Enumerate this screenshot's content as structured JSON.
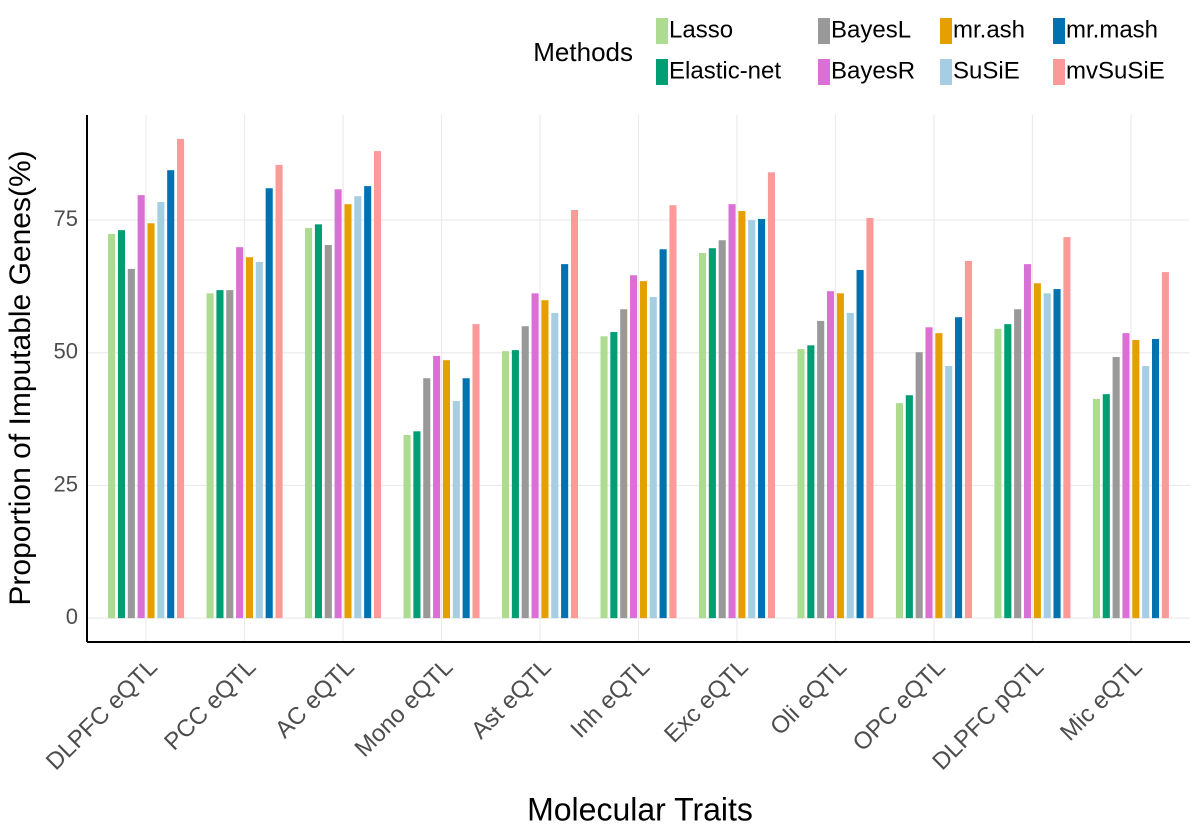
{
  "chart_data": {
    "type": "bar",
    "x_label": "Molecular Traits",
    "y_label": "Proportion of Imputable Genes(%)",
    "legend_title": "Methods",
    "legend": "top",
    "grid": true,
    "categories": [
      "DLPFC eQTL",
      "PCC eQTL",
      "AC eQTL",
      "Mono eQTL",
      "Ast eQTL",
      "Inh eQTL",
      "Exc eQTL",
      "Oli eQTL",
      "OPC eQTL",
      "DLPFC pQTL",
      "Mic eQTL"
    ],
    "series": [
      {
        "name": "Lasso",
        "color": "#addc91",
        "values": [
          72.4,
          61.2,
          73.5,
          34.5,
          50.3,
          53.1,
          68.8,
          50.7,
          40.5,
          54.5,
          41.3
        ]
      },
      {
        "name": "Elastic-net",
        "color": "#009e73",
        "values": [
          73.1,
          61.8,
          74.2,
          35.2,
          50.5,
          53.9,
          69.7,
          51.4,
          42.0,
          55.4,
          42.2
        ]
      },
      {
        "name": "BayesL",
        "color": "#999999",
        "values": [
          65.8,
          61.8,
          70.3,
          45.2,
          55.0,
          58.2,
          71.2,
          56.0,
          50.1,
          58.2,
          49.2
        ]
      },
      {
        "name": "BayesR",
        "color": "#da70d6",
        "values": [
          79.7,
          69.9,
          80.8,
          49.4,
          61.2,
          64.6,
          78.0,
          61.6,
          54.8,
          66.7,
          53.7
        ]
      },
      {
        "name": "mr.ash",
        "color": "#e69f00",
        "values": [
          74.4,
          68.0,
          78.0,
          48.6,
          59.9,
          63.5,
          76.7,
          61.2,
          53.7,
          63.1,
          52.4
        ]
      },
      {
        "name": "SuSiE",
        "color": "#a6cee3",
        "values": [
          78.4,
          67.1,
          79.5,
          40.9,
          57.5,
          60.5,
          75.0,
          57.5,
          47.5,
          61.2,
          47.5
        ]
      },
      {
        "name": "mr.mash",
        "color": "#0072b2",
        "values": [
          84.4,
          81.0,
          81.4,
          45.2,
          66.7,
          69.5,
          75.2,
          65.6,
          56.7,
          62.0,
          52.6
        ]
      },
      {
        "name": "mvSuSiE",
        "color": "#fb9a99",
        "values": [
          90.3,
          85.4,
          88.0,
          55.4,
          76.9,
          77.8,
          84.0,
          75.4,
          67.3,
          71.8,
          65.2
        ]
      }
    ],
    "ylim": [
      -4.5,
      94.8
    ],
    "yticks": [
      0,
      25,
      50,
      75
    ]
  }
}
